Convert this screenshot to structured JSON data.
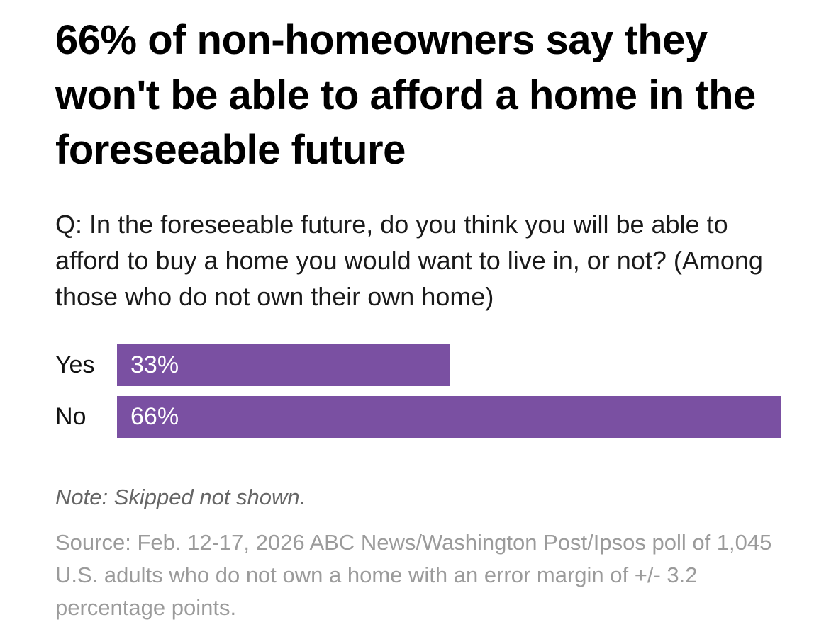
{
  "chart_data": {
    "type": "bar",
    "orientation": "horizontal",
    "title": "66% of non-homeowners say they won't be able to afford a home in the foreseeable future",
    "question": "Q: In the foreseeable future, do you think you will be able to afford to buy a home you would want to live in, or not? (Among those who do not own their own home)",
    "categories": [
      "Yes",
      "No"
    ],
    "values": [
      33,
      66
    ],
    "value_labels": [
      "33%",
      "66%"
    ],
    "xlim": [
      0,
      66
    ],
    "bar_color": "#7a50a2",
    "value_label_color": "#ffffff",
    "grid": false,
    "legend": false,
    "note": "Note: Skipped not shown.",
    "source": "Source: Feb. 12-17, 2026 ABC News/Washington Post/Ipsos poll of 1,045 U.S. adults who do not own a home with an error margin of +/- 3.2 percentage points."
  }
}
